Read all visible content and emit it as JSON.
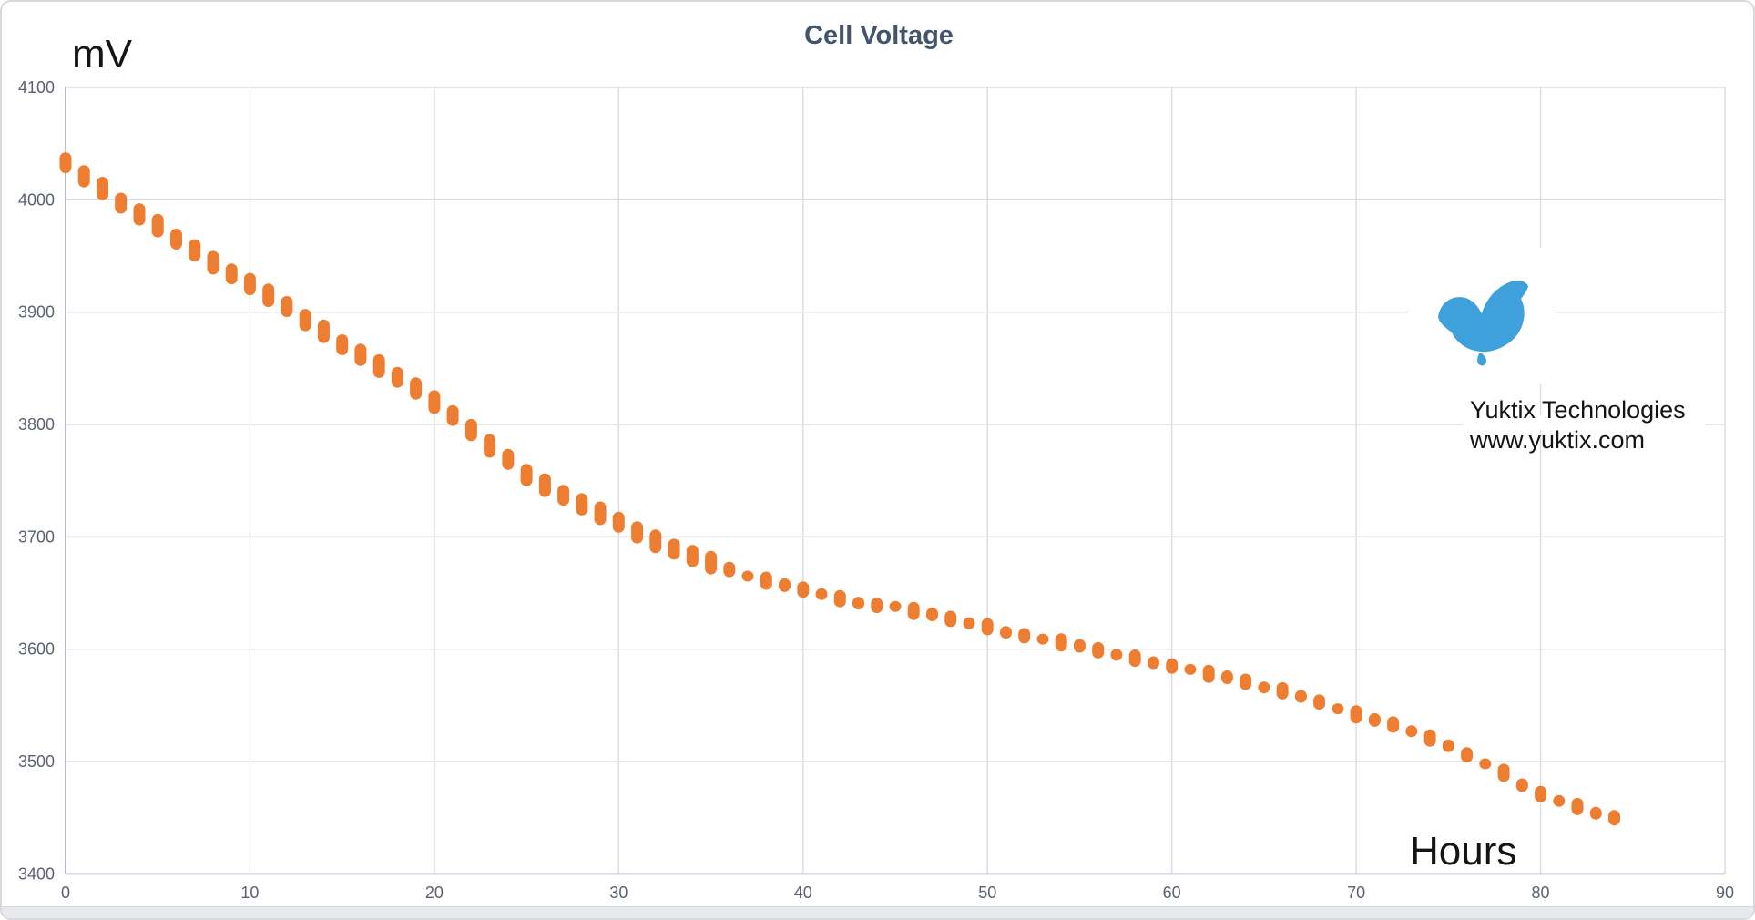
{
  "chart_data": {
    "type": "scatter",
    "title": "Cell Voltage",
    "ylabel": "mV",
    "xlabel": "Hours",
    "xlim": [
      0,
      90
    ],
    "ylim": [
      3400,
      4100
    ],
    "grid": true,
    "legend": "none",
    "x_ticks": [
      0,
      10,
      20,
      30,
      40,
      50,
      60,
      70,
      80,
      90
    ],
    "y_ticks": [
      3400,
      3500,
      3600,
      3700,
      3800,
      3900,
      4000,
      4100
    ],
    "series": [
      {
        "name": "Cell Voltage",
        "marker": "vertical-capsule",
        "color": "#ED7D31",
        "x": [
          0,
          1,
          2,
          3,
          4,
          5,
          6,
          7,
          8,
          9,
          10,
          11,
          12,
          13,
          14,
          15,
          16,
          17,
          18,
          19,
          20,
          21,
          22,
          23,
          24,
          25,
          26,
          27,
          28,
          29,
          30,
          31,
          32,
          33,
          34,
          35,
          36,
          37,
          38,
          39,
          40,
          41,
          42,
          43,
          44,
          45,
          46,
          47,
          48,
          49,
          50,
          51,
          52,
          53,
          54,
          55,
          56,
          57,
          58,
          59,
          60,
          61,
          62,
          63,
          64,
          65,
          66,
          67,
          68,
          69,
          70,
          71,
          72,
          73,
          74,
          75,
          76,
          77,
          78,
          79,
          80,
          81,
          82,
          83,
          84
        ],
        "y": [
          4033,
          4021,
          4010,
          3997,
          3987,
          3977,
          3965,
          3955,
          3944,
          3934,
          3925,
          3915,
          3905,
          3893,
          3883,
          3871,
          3862,
          3852,
          3842,
          3832,
          3820,
          3808,
          3795,
          3781,
          3769,
          3755,
          3746,
          3737,
          3729,
          3721,
          3713,
          3704,
          3696,
          3689,
          3683,
          3677,
          3671,
          3665,
          3661,
          3657,
          3653,
          3649,
          3645,
          3641,
          3639,
          3638,
          3634,
          3631,
          3627,
          3623,
          3620,
          3615,
          3612,
          3609,
          3606,
          3603,
          3599,
          3595,
          3592,
          3588,
          3585,
          3582,
          3578,
          3575,
          3571,
          3566,
          3563,
          3558,
          3553,
          3547,
          3542,
          3537,
          3533,
          3527,
          3521,
          3514,
          3506,
          3498,
          3490,
          3479,
          3471,
          3465,
          3460,
          3454,
          3450
        ]
      }
    ]
  },
  "branding": {
    "company": "Yuktix Technologies",
    "website": "www.yuktix.com",
    "logo": "yuktix-bird-logo"
  },
  "colors": {
    "point_orange": "#ED7D31",
    "title_color": "#44546A",
    "tick_color": "#5a6170",
    "grid_color": "#dadce0",
    "axis_color": "#a3a8b5",
    "logo_blue": "#3EA1DC",
    "text_black": "#141414",
    "background": "#ffffff"
  }
}
